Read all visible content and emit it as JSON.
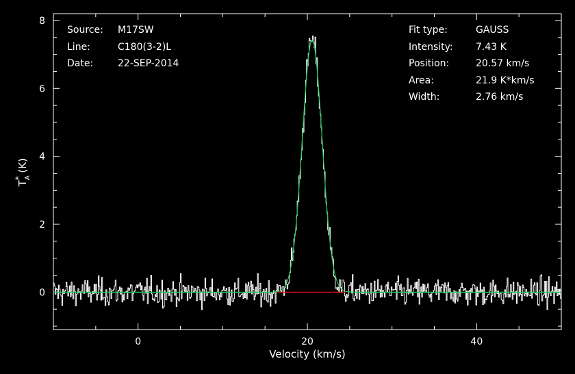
{
  "header_left": [
    {
      "key": "Source:",
      "value": "M17SW"
    },
    {
      "key": "Line:",
      "value": "C180(3-2)L"
    },
    {
      "key": "Date:",
      "value": "22-SEP-2014"
    }
  ],
  "header_right": [
    {
      "key": "Fit type:",
      "value": "GAUSS"
    },
    {
      "key": "Intensity:",
      "value": "7.43 K"
    },
    {
      "key": "Position:",
      "value": "20.57 km/s"
    },
    {
      "key": "Area:",
      "value": "21.9 K*km/s"
    },
    {
      "key": "Width:",
      "value": "2.76 km/s"
    }
  ],
  "chart_data": {
    "type": "line",
    "xlabel": "Velocity (km/s)",
    "ylabel": "T_A* (K)",
    "xlim": [
      -10,
      50
    ],
    "ylim": [
      -1.1,
      8.2
    ],
    "x_ticks": [
      0,
      20,
      40
    ],
    "y_ticks": [
      0,
      2,
      4,
      6,
      8
    ],
    "grid": false,
    "colors": {
      "background": "#000000",
      "axes": "#ffffff",
      "spectrum": "#ffffff",
      "fit": "#22c55e",
      "baseline": "#e01010"
    },
    "series": [
      {
        "values": {
          "gaussian": {
            "amplitude": 7.43,
            "center": 20.57,
            "fwhm": 2.76,
            "noise_rms": 0.2,
            "channel_width": 0.1
          }
        }
      },
      {
        "values": {
          "gaussian": {
            "amplitude": 7.43,
            "center": 20.57,
            "fwhm": 2.76
          }
        }
      },
      {
        "values": {
          "x_range": [
            16.5,
            24.5
          ],
          "y": 0
        }
      }
    ]
  }
}
